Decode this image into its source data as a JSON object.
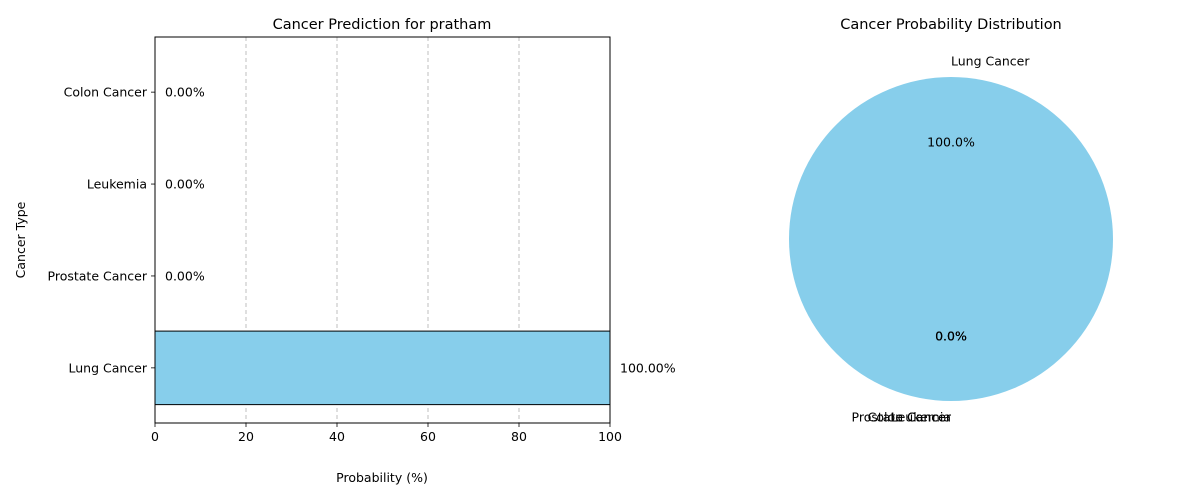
{
  "chart_data": [
    {
      "type": "bar",
      "orientation": "horizontal",
      "title": "Cancer Prediction for pratham",
      "xlabel": "Probability (%)",
      "ylabel": "Cancer Type",
      "categories": [
        "Lung Cancer",
        "Prostate Cancer",
        "Leukemia",
        "Colon Cancer"
      ],
      "values": [
        100.0,
        0.0,
        0.0,
        0.0
      ],
      "value_labels": [
        "100.00%",
        "0.00%",
        "0.00%",
        "0.00%"
      ],
      "xlim": [
        0,
        100
      ],
      "xticks": [
        0,
        20,
        40,
        60,
        80,
        100
      ],
      "grid": "x-dashed",
      "bar_color": "#87ceeb",
      "edge_color": "#000000"
    },
    {
      "type": "pie",
      "title": "Cancer Probability Distribution",
      "labels": [
        "Lung Cancer",
        "Prostate Cancer",
        "Leukemia",
        "Colon Cancer"
      ],
      "values": [
        100.0,
        0.0,
        0.0,
        0.0
      ],
      "pct_labels": [
        "100.0%",
        "0.0%",
        "0.0%",
        "0.0%"
      ],
      "colors": [
        "#87ceeb",
        "#87ceeb",
        "#87ceeb",
        "#87ceeb"
      ]
    }
  ]
}
